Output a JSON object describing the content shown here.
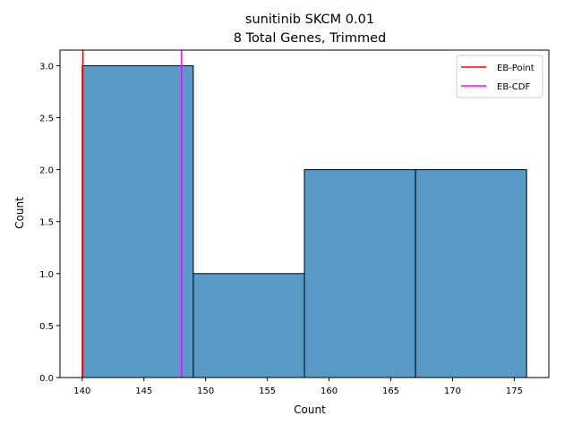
{
  "chart_data": {
    "type": "histogram",
    "title": "sunitinib SKCM 0.01",
    "subtitle": "8 Total Genes, Trimmed",
    "xlabel": "Count",
    "ylabel": "Count",
    "xlim": [
      138.2,
      177.8
    ],
    "ylim": [
      0,
      3.15
    ],
    "xticks": [
      140,
      145,
      150,
      155,
      160,
      165,
      170,
      175
    ],
    "xtick_labels": [
      "140",
      "145",
      "150",
      "155",
      "160",
      "165",
      "170",
      "175"
    ],
    "yticks": [
      0,
      0.5,
      1.0,
      1.5,
      2.0,
      2.5,
      3.0
    ],
    "ytick_labels": [
      "0.0",
      "0.5",
      "1.0",
      "1.5",
      "2.0",
      "2.5",
      "3.0"
    ],
    "bins": [
      {
        "x0": 140,
        "x1": 149,
        "count": 3
      },
      {
        "x0": 149,
        "x1": 158,
        "count": 1
      },
      {
        "x0": 158,
        "x1": 167,
        "count": 2
      },
      {
        "x0": 167,
        "x1": 176,
        "count": 2
      }
    ],
    "bar_color": "#5799c7",
    "vlines": [
      {
        "name": "EB-Point",
        "x": 140.05,
        "color": "#ff0000"
      },
      {
        "name": "EB-CDF",
        "x": 148.05,
        "color": "#ff00ff"
      }
    ],
    "legend": {
      "position": "top-right",
      "entries": [
        {
          "label": "EB-Point",
          "color": "#ff0000"
        },
        {
          "label": "EB-CDF",
          "color": "#ff00ff"
        }
      ]
    },
    "grid": false
  }
}
